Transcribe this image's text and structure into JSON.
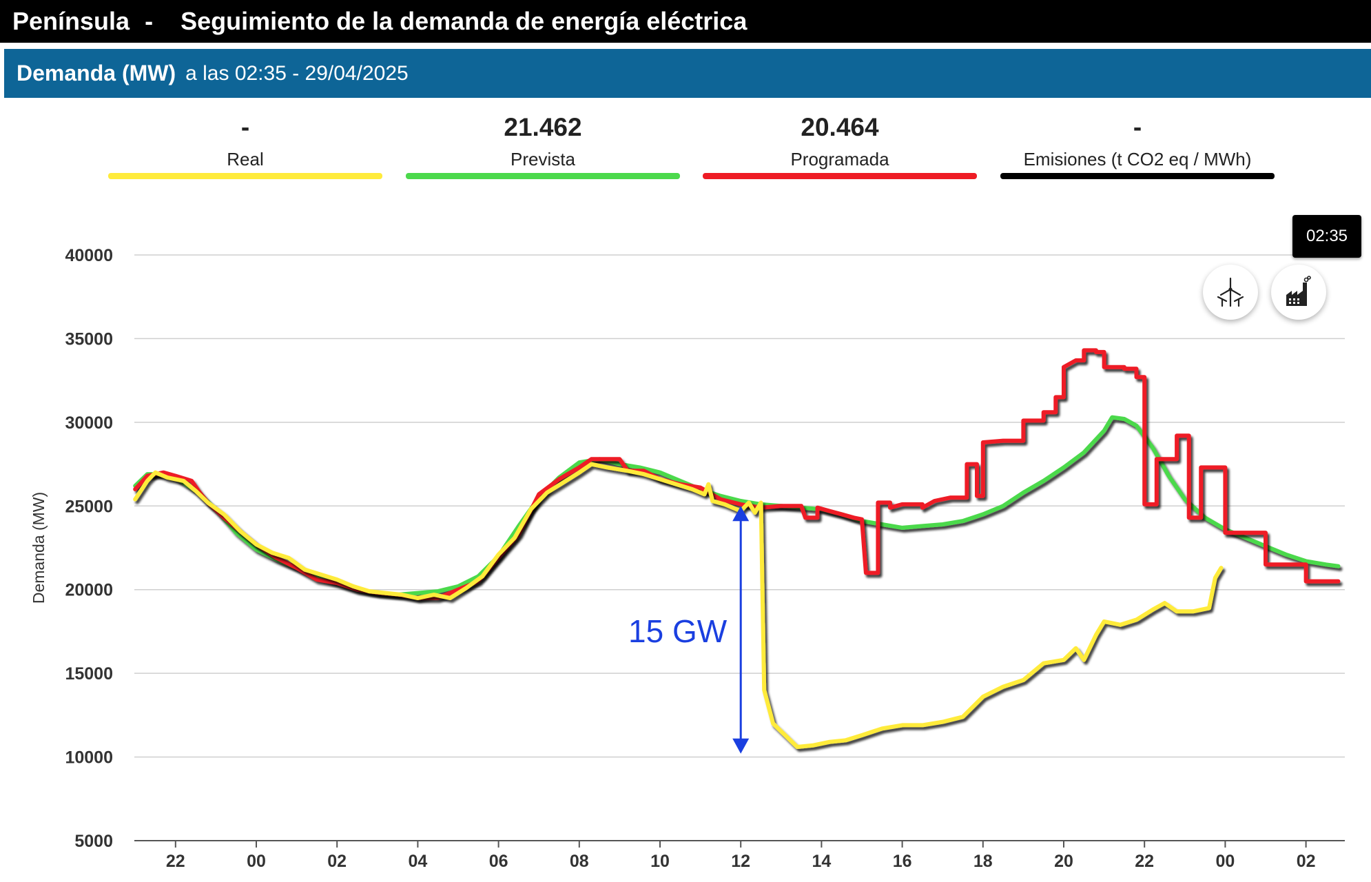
{
  "header": {
    "region": "Península",
    "separator": "-",
    "title": "Seguimiento de la demanda de energía eléctrica"
  },
  "subheader": {
    "metric": "Demanda (MW)",
    "timestamp": "a las 02:35 - 29/04/2025"
  },
  "kpis": [
    {
      "value": "-",
      "label": "Real",
      "color": "#ffeb3b"
    },
    {
      "value": "21.462",
      "label": "Prevista",
      "color": "#4cd94c"
    },
    {
      "value": "20.464",
      "label": "Programada",
      "color": "#ee1c25"
    },
    {
      "value": "-",
      "label": "Emisiones (t CO2 eq / MWh)",
      "color": "#000000"
    }
  ],
  "tooltip": {
    "time": "02:35"
  },
  "buttons": [
    {
      "name": "wind-turbine-icon"
    },
    {
      "name": "factory-icon"
    }
  ],
  "chart_data": {
    "type": "line",
    "ylabel": "Demanda (MW)",
    "ylim": [
      5000,
      40000
    ],
    "yticks": [
      5000,
      10000,
      15000,
      20000,
      25000,
      30000,
      35000,
      40000
    ],
    "xticks": [
      "22",
      "00",
      "02",
      "04",
      "06",
      "08",
      "10",
      "12",
      "14",
      "16",
      "18",
      "20",
      "22",
      "00",
      "02"
    ],
    "x_unit": "hours since 00:00 of 28/04/2025",
    "annotation": {
      "text": "15 GW",
      "x": 12.0,
      "y_from": 25000,
      "y_to": 10200,
      "color": "#1a3fe0"
    },
    "series": [
      {
        "name": "Real",
        "color": "#ffeb3b",
        "points": [
          [
            -3,
            25400
          ],
          [
            -2.7,
            26500
          ],
          [
            -2.5,
            27000
          ],
          [
            -2.2,
            26700
          ],
          [
            -1.8,
            26500
          ],
          [
            -1.5,
            25900
          ],
          [
            -1.2,
            25200
          ],
          [
            -0.8,
            24500
          ],
          [
            -0.4,
            23500
          ],
          [
            0,
            22700
          ],
          [
            0.4,
            22200
          ],
          [
            0.8,
            21900
          ],
          [
            1.2,
            21200
          ],
          [
            1.6,
            20900
          ],
          [
            2,
            20600
          ],
          [
            2.4,
            20200
          ],
          [
            2.8,
            19900
          ],
          [
            3.2,
            19800
          ],
          [
            3.6,
            19700
          ],
          [
            4,
            19500
          ],
          [
            4.4,
            19700
          ],
          [
            4.8,
            19500
          ],
          [
            5.2,
            20100
          ],
          [
            5.6,
            20800
          ],
          [
            6,
            22100
          ],
          [
            6.4,
            23100
          ],
          [
            6.8,
            24800
          ],
          [
            7.2,
            25800
          ],
          [
            7.6,
            26400
          ],
          [
            8,
            27000
          ],
          [
            8.3,
            27500
          ],
          [
            8.7,
            27300
          ],
          [
            9.2,
            27100
          ],
          [
            9.6,
            26900
          ],
          [
            10,
            26600
          ],
          [
            10.4,
            26300
          ],
          [
            10.8,
            26000
          ],
          [
            11.1,
            25700
          ],
          [
            11.2,
            26300
          ],
          [
            11.3,
            25300
          ],
          [
            11.6,
            25100
          ],
          [
            12,
            24700
          ],
          [
            12.2,
            25200
          ],
          [
            12.35,
            24600
          ],
          [
            12.5,
            25200
          ],
          [
            12.58,
            14000
          ],
          [
            12.8,
            12000
          ],
          [
            13.1,
            11300
          ],
          [
            13.4,
            10600
          ],
          [
            13.8,
            10700
          ],
          [
            14.2,
            10900
          ],
          [
            14.6,
            11000
          ],
          [
            15,
            11300
          ],
          [
            15.5,
            11700
          ],
          [
            16,
            11900
          ],
          [
            16.5,
            11900
          ],
          [
            17,
            12100
          ],
          [
            17.5,
            12400
          ],
          [
            18,
            13600
          ],
          [
            18.5,
            14200
          ],
          [
            19,
            14600
          ],
          [
            19.5,
            15600
          ],
          [
            20,
            15800
          ],
          [
            20.3,
            16500
          ],
          [
            20.5,
            15800
          ],
          [
            20.8,
            17300
          ],
          [
            21,
            18100
          ],
          [
            21.4,
            17900
          ],
          [
            21.8,
            18200
          ],
          [
            22.2,
            18800
          ],
          [
            22.5,
            19200
          ],
          [
            22.8,
            18700
          ],
          [
            23.2,
            18700
          ],
          [
            23.6,
            18900
          ],
          [
            23.75,
            20700
          ],
          [
            23.9,
            21300
          ]
        ]
      },
      {
        "name": "Prevista",
        "color": "#4cd94c",
        "points": [
          [
            -3,
            26200
          ],
          [
            -2.7,
            26900
          ],
          [
            -2.3,
            26900
          ],
          [
            -2,
            26700
          ],
          [
            -1.5,
            25900
          ],
          [
            -1,
            24800
          ],
          [
            -0.5,
            23400
          ],
          [
            0,
            22400
          ],
          [
            0.5,
            21800
          ],
          [
            1,
            21300
          ],
          [
            1.5,
            20800
          ],
          [
            2,
            20400
          ],
          [
            2.5,
            20000
          ],
          [
            3,
            19800
          ],
          [
            3.5,
            19700
          ],
          [
            4,
            19800
          ],
          [
            4.5,
            19900
          ],
          [
            5,
            20200
          ],
          [
            5.5,
            20800
          ],
          [
            6,
            22000
          ],
          [
            6.5,
            23800
          ],
          [
            7,
            25500
          ],
          [
            7.5,
            26700
          ],
          [
            8,
            27600
          ],
          [
            8.5,
            27800
          ],
          [
            9,
            27500
          ],
          [
            9.5,
            27300
          ],
          [
            10,
            27000
          ],
          [
            10.5,
            26500
          ],
          [
            11,
            26000
          ],
          [
            11.5,
            25600
          ],
          [
            12,
            25300
          ],
          [
            12.5,
            25100
          ],
          [
            13,
            25000
          ],
          [
            14,
            24800
          ],
          [
            14.5,
            24500
          ],
          [
            15,
            24100
          ],
          [
            15.5,
            23900
          ],
          [
            16,
            23700
          ],
          [
            16.5,
            23800
          ],
          [
            17,
            23900
          ],
          [
            17.5,
            24100
          ],
          [
            18,
            24500
          ],
          [
            18.5,
            25000
          ],
          [
            19,
            25800
          ],
          [
            19.5,
            26500
          ],
          [
            20,
            27300
          ],
          [
            20.5,
            28200
          ],
          [
            21,
            29500
          ],
          [
            21.2,
            30300
          ],
          [
            21.5,
            30200
          ],
          [
            21.8,
            29800
          ],
          [
            22.2,
            28500
          ],
          [
            22.6,
            26800
          ],
          [
            23,
            25400
          ],
          [
            23.5,
            24300
          ],
          [
            24,
            23600
          ],
          [
            24.5,
            23100
          ],
          [
            25,
            22600
          ],
          [
            25.5,
            22100
          ],
          [
            26,
            21700
          ],
          [
            26.5,
            21500
          ],
          [
            26.8,
            21400
          ]
        ]
      },
      {
        "name": "Programada",
        "color": "#ee1c25",
        "points": [
          [
            -3,
            26000
          ],
          [
            -2.7,
            26800
          ],
          [
            -2.3,
            27000
          ],
          [
            -2,
            26800
          ],
          [
            -1.6,
            26500
          ],
          [
            -1.4,
            25800
          ],
          [
            -1.2,
            25200
          ],
          [
            -0.8,
            24300
          ],
          [
            -0.5,
            23700
          ],
          [
            0,
            22700
          ],
          [
            0.5,
            21900
          ],
          [
            1,
            21300
          ],
          [
            1.5,
            20600
          ],
          [
            2,
            20400
          ],
          [
            2.5,
            20000
          ],
          [
            3,
            19800
          ],
          [
            3.5,
            19700
          ],
          [
            4,
            19500
          ],
          [
            4.5,
            19500
          ],
          [
            5,
            20000
          ],
          [
            5.5,
            20500
          ],
          [
            6,
            21900
          ],
          [
            6.5,
            23300
          ],
          [
            7,
            25700
          ],
          [
            7.5,
            26600
          ],
          [
            8,
            27300
          ],
          [
            8.3,
            27800
          ],
          [
            9,
            27800
          ],
          [
            9.2,
            27100
          ],
          [
            9.6,
            27100
          ],
          [
            10,
            26600
          ],
          [
            10.5,
            26300
          ],
          [
            11,
            26100
          ],
          [
            11.5,
            25400
          ],
          [
            12,
            25100
          ],
          [
            12.5,
            24900
          ],
          [
            13,
            25000
          ],
          [
            13.5,
            25000
          ],
          [
            13.6,
            24300
          ],
          [
            13.9,
            24300
          ],
          [
            13.9,
            24900
          ],
          [
            14.2,
            24700
          ],
          [
            14.5,
            24500
          ],
          [
            14.8,
            24300
          ],
          [
            15,
            24200
          ],
          [
            15.1,
            21000
          ],
          [
            15.4,
            21000
          ],
          [
            15.4,
            25200
          ],
          [
            15.7,
            25200
          ],
          [
            15.7,
            24900
          ],
          [
            16,
            25100
          ],
          [
            16.5,
            25100
          ],
          [
            16.5,
            24900
          ],
          [
            16.8,
            25300
          ],
          [
            17.2,
            25500
          ],
          [
            17.6,
            25500
          ],
          [
            17.6,
            27500
          ],
          [
            17.85,
            27500
          ],
          [
            17.85,
            25600
          ],
          [
            18,
            25600
          ],
          [
            18,
            28800
          ],
          [
            18.5,
            28900
          ],
          [
            19,
            28900
          ],
          [
            19,
            30100
          ],
          [
            19.5,
            30100
          ],
          [
            19.5,
            30600
          ],
          [
            19.8,
            30600
          ],
          [
            19.8,
            31500
          ],
          [
            20,
            31500
          ],
          [
            20,
            33300
          ],
          [
            20.3,
            33700
          ],
          [
            20.5,
            33700
          ],
          [
            20.5,
            34300
          ],
          [
            20.8,
            34300
          ],
          [
            20.8,
            34200
          ],
          [
            21,
            34200
          ],
          [
            21,
            33300
          ],
          [
            21.5,
            33300
          ],
          [
            21.5,
            33200
          ],
          [
            21.8,
            33200
          ],
          [
            21.8,
            32700
          ],
          [
            22,
            32700
          ],
          [
            22,
            25100
          ],
          [
            22.3,
            25100
          ],
          [
            22.3,
            27800
          ],
          [
            22.8,
            27800
          ],
          [
            22.8,
            29200
          ],
          [
            23.1,
            29200
          ],
          [
            23.1,
            24300
          ],
          [
            23.4,
            24300
          ],
          [
            23.4,
            27300
          ],
          [
            24,
            27300
          ],
          [
            24,
            23400
          ],
          [
            24.5,
            23400
          ],
          [
            25,
            23400
          ],
          [
            25,
            21500
          ],
          [
            26,
            21500
          ],
          [
            26,
            20500
          ],
          [
            26.8,
            20500
          ]
        ]
      }
    ]
  }
}
